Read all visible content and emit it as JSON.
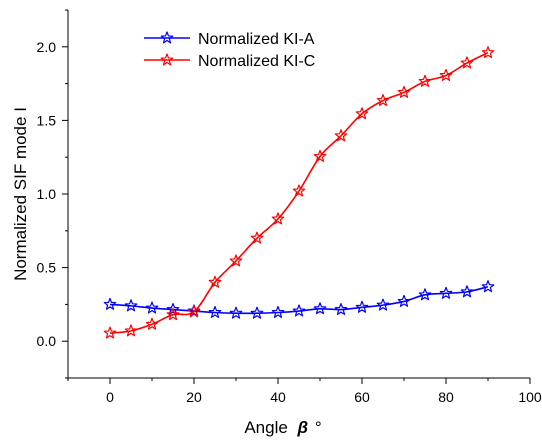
{
  "chart_data": {
    "type": "line",
    "xlabel": "Angle",
    "xlabel_symbol": "β",
    "xlabel_unit": "°",
    "ylabel": "Normalized SIF mode I",
    "xlim": [
      -10,
      100
    ],
    "ylim": [
      -0.25,
      2.25
    ],
    "xticks": [
      "0",
      "20",
      "40",
      "60",
      "80",
      "100"
    ],
    "yticks": [
      "0.0",
      "0.5",
      "1.0",
      "1.5",
      "2.0"
    ],
    "x": [
      0,
      5,
      10,
      15,
      20,
      25,
      30,
      35,
      40,
      45,
      50,
      55,
      60,
      65,
      70,
      75,
      80,
      85,
      90
    ],
    "series": [
      {
        "name": "Normalized KI-A",
        "color": "#0000ff",
        "marker": "star",
        "values": [
          0.25,
          0.24,
          0.225,
          0.215,
          0.205,
          0.195,
          0.19,
          0.19,
          0.195,
          0.205,
          0.22,
          0.215,
          0.23,
          0.245,
          0.27,
          0.315,
          0.325,
          0.335,
          0.37
        ]
      },
      {
        "name": "Normalized KI-C",
        "color": "#ff0000",
        "marker": "star",
        "values": [
          0.055,
          0.07,
          0.115,
          0.18,
          0.2,
          0.4,
          0.545,
          0.7,
          0.83,
          1.02,
          1.255,
          1.395,
          1.545,
          1.635,
          1.69,
          1.765,
          1.805,
          1.89,
          1.96
        ]
      }
    ],
    "legend_position": "top-left"
  }
}
